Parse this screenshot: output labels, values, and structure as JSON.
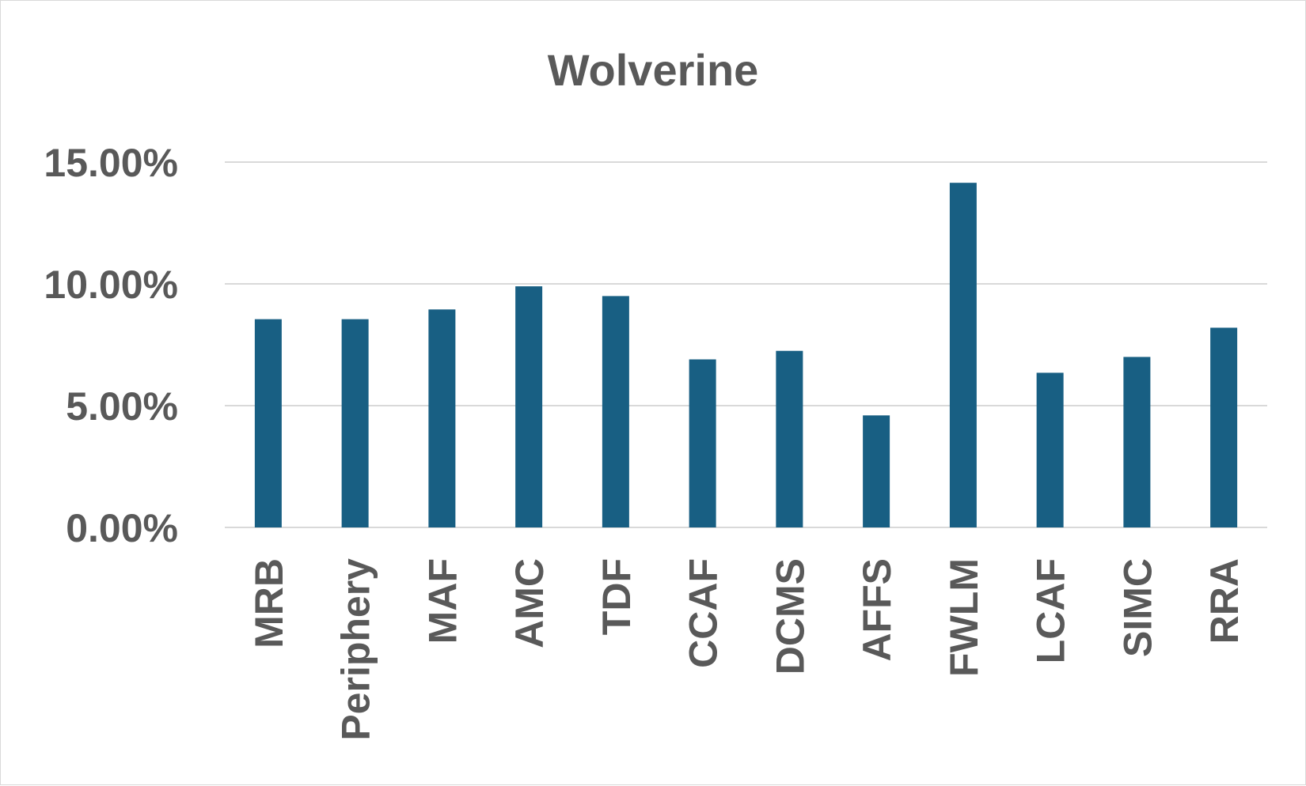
{
  "chart_data": {
    "type": "bar",
    "title": "Wolverine",
    "xlabel": "",
    "ylabel": "",
    "categories": [
      "MRB",
      "Periphery",
      "MAF",
      "AMC",
      "TDF",
      "CCAF",
      "DCMS",
      "AFFS",
      "FWLM",
      "LCAF",
      "SIMC",
      "RRA"
    ],
    "values": [
      8.55,
      8.55,
      8.95,
      9.9,
      9.5,
      6.9,
      7.25,
      4.6,
      14.15,
      6.35,
      7.0,
      8.2
    ],
    "value_format": "percent",
    "ylim": [
      0,
      15
    ],
    "yticks": [
      0,
      5,
      10,
      15
    ],
    "ytick_labels": [
      "0.00%",
      "5.00%",
      "10.00%",
      "15.00%"
    ],
    "grid": true,
    "legend": "none",
    "colors": {
      "bar": "#185f83",
      "grid": "#d9d9d9",
      "text": "#595959"
    }
  }
}
